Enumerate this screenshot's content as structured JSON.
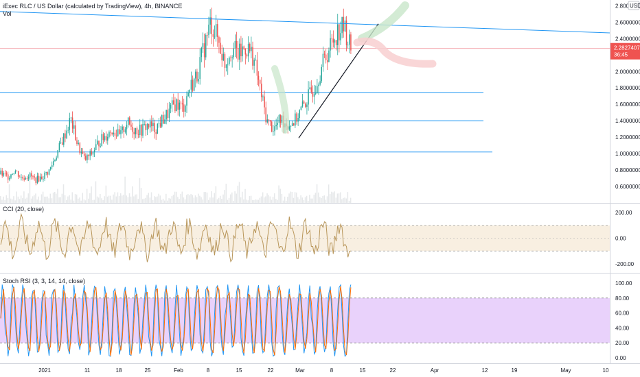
{
  "chart_data": {
    "type": "candlestick",
    "title": "iExec RLC / US Dollar (calculated by TradingView), 4h, BINANCE",
    "legend_currency": "USD",
    "volume_label": "Vol",
    "price_axis": {
      "ticks": [
        "2.80000000",
        "2.60000000",
        "2.40000000",
        "2.20000000",
        "2.00000000",
        "1.80000000",
        "1.60000000",
        "1.40000000",
        "1.20000000",
        "1.00000000",
        "0.80000000",
        "0.60000000"
      ],
      "range": [
        0.45,
        2.82
      ]
    },
    "last_price": {
      "value": "2.28274075",
      "countdown": "36:45",
      "color": "#ef5350"
    },
    "time_axis": {
      "labels": [
        "2021",
        "11",
        "18",
        "25",
        "Feb",
        "8",
        "15",
        "22",
        "Mar",
        "8",
        "15",
        "22",
        "Apr",
        "12",
        "19",
        "May",
        "10"
      ]
    },
    "price_series_close_path": [
      [
        0,
        0.75
      ],
      [
        0.02,
        0.72
      ],
      [
        0.04,
        0.8
      ],
      [
        0.06,
        0.7
      ],
      [
        0.08,
        0.74
      ],
      [
        0.1,
        0.68
      ],
      [
        0.12,
        0.72
      ],
      [
        0.14,
        0.8
      ],
      [
        0.16,
        1.0
      ],
      [
        0.18,
        1.2
      ],
      [
        0.2,
        1.42
      ],
      [
        0.22,
        1.1
      ],
      [
        0.24,
        0.92
      ],
      [
        0.26,
        1.0
      ],
      [
        0.28,
        1.14
      ],
      [
        0.3,
        1.22
      ],
      [
        0.32,
        1.3
      ],
      [
        0.34,
        1.2
      ],
      [
        0.36,
        1.38
      ],
      [
        0.38,
        1.3
      ],
      [
        0.4,
        1.28
      ],
      [
        0.42,
        1.35
      ],
      [
        0.44,
        1.3
      ],
      [
        0.46,
        1.4
      ],
      [
        0.48,
        1.5
      ],
      [
        0.5,
        1.62
      ],
      [
        0.52,
        1.55
      ],
      [
        0.54,
        1.8
      ],
      [
        0.56,
        1.95
      ],
      [
        0.58,
        2.28
      ],
      [
        0.6,
        2.6
      ],
      [
        0.62,
        2.4
      ],
      [
        0.64,
        2.1
      ],
      [
        0.66,
        2.3
      ],
      [
        0.68,
        2.2
      ],
      [
        0.7,
        2.3
      ],
      [
        0.72,
        2.2
      ],
      [
        0.74,
        1.8
      ],
      [
        0.76,
        1.4
      ],
      [
        0.78,
        1.3
      ],
      [
        0.8,
        1.42
      ],
      [
        0.82,
        1.35
      ],
      [
        0.84,
        1.4
      ],
      [
        0.86,
        1.55
      ],
      [
        0.88,
        1.7
      ],
      [
        0.9,
        1.85
      ],
      [
        0.92,
        2.1
      ],
      [
        0.94,
        2.3
      ],
      [
        0.96,
        2.48
      ],
      [
        0.98,
        2.55
      ],
      [
        1.0,
        2.28
      ]
    ],
    "horizontal_lines": [
      1.745,
      1.4,
      1.02,
      2.28
    ],
    "annotations": [
      "trend line up",
      "bullish path green",
      "bearish path red",
      "descending resistance line"
    ],
    "indicators": [
      {
        "name": "CCI (20, close)",
        "ticks": [
          "200.00",
          "0.00",
          "-200.00"
        ],
        "band": [
          -100,
          100
        ],
        "color": "#b8965a"
      },
      {
        "name": "Stoch RSI (3, 3, 14, 14, close)",
        "ticks": [
          "100.00",
          "80.00",
          "60.00",
          "40.00",
          "20.00",
          "0.00"
        ],
        "band": [
          20,
          80
        ],
        "colors": [
          "#2196f3",
          "#ff6d00"
        ]
      }
    ],
    "colors": {
      "up": "#26a69a",
      "down": "#ef5350",
      "lines": "#2196f3",
      "grid": "#e0e3eb"
    }
  }
}
